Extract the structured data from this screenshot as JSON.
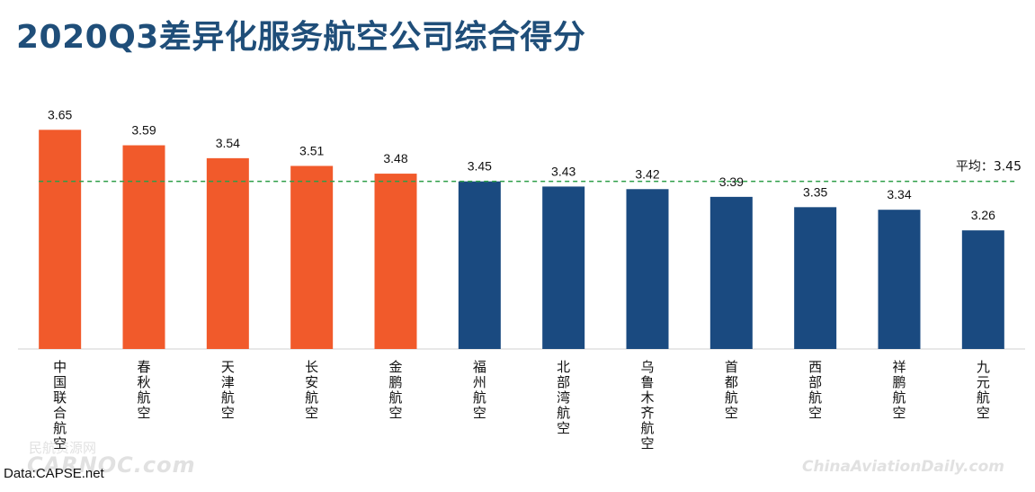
{
  "title": "2020Q3差异化服务航空公司综合得分",
  "source": "Data:CAPSE.net",
  "watermarks": {
    "left_cn": "民航资源网",
    "left_en": "CARNOC.com",
    "right": "ChinaAviationDaily.com"
  },
  "chart_data": {
    "type": "bar",
    "title": "2020Q3差异化服务航空公司综合得分",
    "xlabel": "",
    "ylabel": "",
    "categories": [
      "中国联合航空",
      "春秋航空",
      "天津航空",
      "长安航空",
      "金鹏航空",
      "福州航空",
      "北部湾航空",
      "乌鲁木齐航空",
      "首都航空",
      "西部航空",
      "祥鹏航空",
      "九元航空"
    ],
    "values": [
      3.65,
      3.59,
      3.54,
      3.51,
      3.48,
      3.45,
      3.43,
      3.42,
      3.39,
      3.35,
      3.34,
      3.26
    ],
    "value_labels": [
      "3.65",
      "3.59",
      "3.54",
      "3.51",
      "3.48",
      "3.45",
      "3.43",
      "3.42",
      "3.39",
      "3.35",
      "3.34",
      "3.26"
    ],
    "bar_colors": [
      "#f15a2b",
      "#f15a2b",
      "#f15a2b",
      "#f15a2b",
      "#f15a2b",
      "#1a4a80",
      "#1a4a80",
      "#1a4a80",
      "#1a4a80",
      "#1a4a80",
      "#1a4a80",
      "#1a4a80"
    ],
    "average": {
      "value": 3.45,
      "label": "平均：3.45",
      "color": "#2e9e48"
    },
    "ylim": [
      2.8,
      3.7
    ],
    "grid": false,
    "legend": "none"
  }
}
